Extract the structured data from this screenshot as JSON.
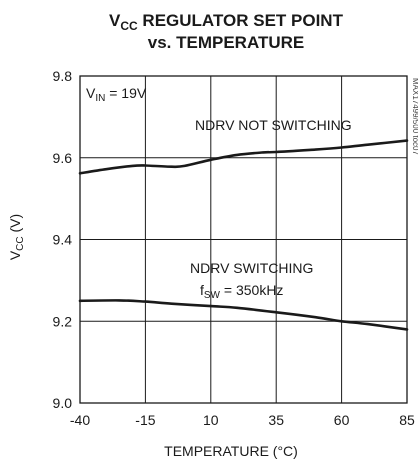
{
  "chart_data": {
    "type": "line",
    "title": {
      "line1": {
        "main": "V",
        "sub": "CC",
        "rest": " REGULATOR SET POINT"
      },
      "line2": "vs. TEMPERATURE"
    },
    "xlabel": "TEMPERATURE (°C)",
    "ylabel": {
      "main": "V",
      "sub": "CC",
      "rest": " (V)"
    },
    "xlim": [
      -40,
      85
    ],
    "ylim": [
      9.0,
      9.8
    ],
    "x_ticks": [
      "-40",
      "-15",
      "10",
      "35",
      "60",
      "85"
    ],
    "y_ticks": [
      "9.0",
      "9.2",
      "9.4",
      "9.6",
      "9.8"
    ],
    "grid": true,
    "annotations": {
      "vin": {
        "main": "V",
        "sub": "IN",
        "rest": " = 19V"
      },
      "not_switching": "NDRV NOT SWITCHING",
      "switching": "NDRV SWITCHING",
      "fsw": {
        "main": "f",
        "sub": "SW",
        "rest": " = 350kHz"
      },
      "figure_id": "MAX17499/500 toc07"
    },
    "series": [
      {
        "name": "NDRV NOT SWITCHING",
        "x": [
          -40,
          -30,
          -20,
          -15,
          -5,
          0,
          10,
          20,
          30,
          35,
          50,
          60,
          70,
          85
        ],
        "y": [
          9.562,
          9.572,
          9.58,
          9.581,
          9.578,
          9.58,
          9.595,
          9.607,
          9.613,
          9.614,
          9.62,
          9.625,
          9.632,
          9.642
        ]
      },
      {
        "name": "NDRV SWITCHING",
        "x": [
          -40,
          -25,
          -15,
          -5,
          10,
          20,
          35,
          50,
          60,
          70,
          85
        ],
        "y": [
          9.25,
          9.251,
          9.248,
          9.243,
          9.237,
          9.233,
          9.222,
          9.21,
          9.2,
          9.193,
          9.18
        ]
      }
    ],
    "colors": {
      "line": "#1a1a1a",
      "grid": "#1a1a1a",
      "background": "#ffffff"
    }
  }
}
